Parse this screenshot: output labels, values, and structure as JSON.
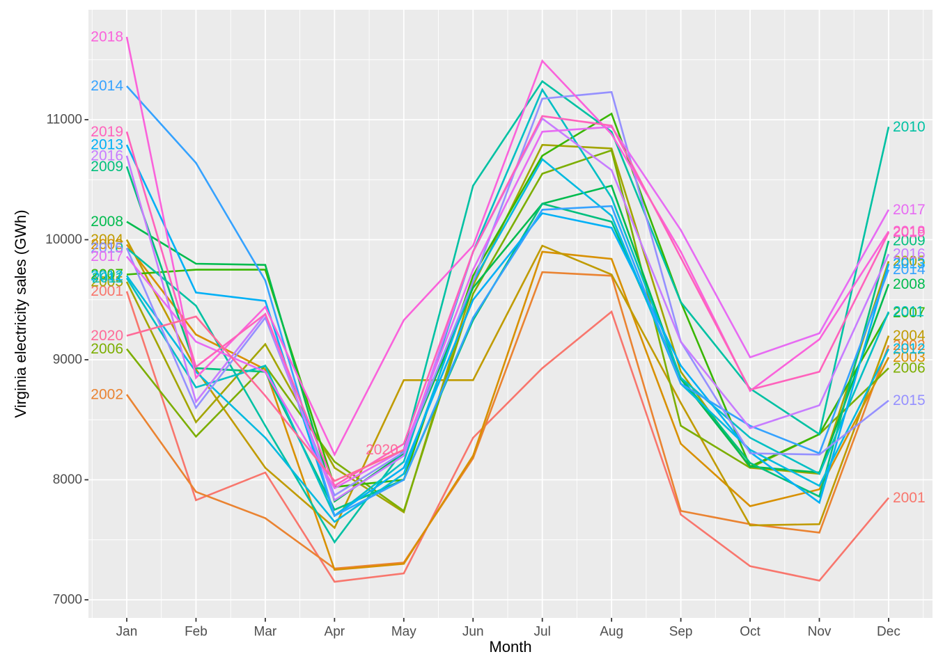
{
  "figure": {
    "background": "#FFFFFF",
    "panel_background": "#EBEBEB",
    "grid_color": "#FFFFFF",
    "axis_tick_color": "#333333",
    "tick_label_color": "#4D4D4D",
    "axis_title_color": "#000000"
  },
  "chart_data": {
    "type": "line",
    "title": "",
    "xlabel": "Month",
    "ylabel": "Virginia electricity sales (GWh)",
    "x_categories": [
      "Jan",
      "Feb",
      "Mar",
      "Apr",
      "May",
      "Jun",
      "Jul",
      "Aug",
      "Sep",
      "Oct",
      "Nov",
      "Dec"
    ],
    "y_ticks": [
      7000,
      8000,
      9000,
      10000,
      11000
    ],
    "y_minor_ticks": [
      7500,
      8500,
      9500,
      10500,
      11500
    ],
    "ylim": [
      6850,
      11920
    ],
    "grid": true,
    "legend_position": "none",
    "direct_labels": "year label at start and end of each line",
    "units": "GWh",
    "series": [
      {
        "name": "2001",
        "color": "#F8766D",
        "values": [
          9570,
          7830,
          8060,
          7150,
          7220,
          8350,
          8930,
          9400,
          7710,
          7280,
          7160,
          7850
        ]
      },
      {
        "name": "2002",
        "color": "#EA8331",
        "values": [
          8710,
          7900,
          7680,
          7260,
          7310,
          8180,
          9730,
          9700,
          7740,
          7630,
          7560,
          9120
        ]
      },
      {
        "name": "2003",
        "color": "#D89000",
        "values": [
          9960,
          9210,
          8920,
          7250,
          7300,
          8200,
          9900,
          9840,
          8300,
          7780,
          7920,
          9020
        ]
      },
      {
        "name": "2004",
        "color": "#C09B00",
        "values": [
          10000,
          8920,
          8100,
          7600,
          8830,
          8830,
          9950,
          9710,
          8640,
          7620,
          7630,
          9200
        ]
      },
      {
        "name": "2005",
        "color": "#A3A500",
        "values": [
          9650,
          8480,
          9130,
          8100,
          7730,
          9620,
          10790,
          10760,
          8900,
          8100,
          8050,
          9820
        ]
      },
      {
        "name": "2006",
        "color": "#7CAE00",
        "values": [
          9090,
          8360,
          8950,
          8150,
          7740,
          9550,
          10550,
          10745,
          8450,
          8100,
          8380,
          8930
        ]
      },
      {
        "name": "2007",
        "color": "#39B600",
        "values": [
          9710,
          9750,
          9750,
          7940,
          8000,
          9700,
          10700,
          11050,
          9480,
          8110,
          8380,
          9390
        ]
      },
      {
        "name": "2008",
        "color": "#00BB4E",
        "values": [
          10150,
          9800,
          9790,
          7820,
          8220,
          9600,
          10300,
          10450,
          8840,
          8110,
          8060,
          9630
        ]
      },
      {
        "name": "2009",
        "color": "#00BF7D",
        "values": [
          10610,
          8930,
          8900,
          7750,
          8000,
          9330,
          10300,
          10150,
          8850,
          8140,
          7860,
          9990
        ]
      },
      {
        "name": "2010",
        "color": "#00C1A3",
        "values": [
          9930,
          9450,
          8450,
          7480,
          8250,
          10450,
          11320,
          10900,
          9480,
          8760,
          8380,
          10940
        ]
      },
      {
        "name": "2011",
        "color": "#00BFC4",
        "values": [
          9680,
          8770,
          8950,
          7700,
          8150,
          9900,
          11250,
          10350,
          8850,
          8350,
          8050,
          9400
        ]
      },
      {
        "name": "2012",
        "color": "#00BAE0",
        "values": [
          9700,
          8900,
          8350,
          7650,
          8050,
          9650,
          10670,
          10200,
          8800,
          8250,
          7950,
          9090
        ]
      },
      {
        "name": "2013",
        "color": "#00B0F6",
        "values": [
          10790,
          9560,
          9490,
          7700,
          8100,
          9500,
          10220,
          10100,
          8950,
          8230,
          7810,
          9800
        ]
      },
      {
        "name": "2014",
        "color": "#35A2FF",
        "values": [
          11280,
          10640,
          9660,
          7700,
          8000,
          9350,
          10250,
          10280,
          8800,
          8450,
          8220,
          9750
        ]
      },
      {
        "name": "2015",
        "color": "#9590FF",
        "values": [
          9930,
          8600,
          9350,
          7870,
          8230,
          9650,
          11175,
          11230,
          9150,
          8220,
          8210,
          8660
        ]
      },
      {
        "name": "2016",
        "color": "#C77CFF",
        "values": [
          10700,
          8650,
          9380,
          7830,
          8200,
          9900,
          11010,
          10580,
          9150,
          8430,
          8620,
          9880
        ]
      },
      {
        "name": "2017",
        "color": "#E76BF3",
        "values": [
          9860,
          9150,
          8900,
          7930,
          8250,
          9750,
          10900,
          10940,
          10080,
          9020,
          9220,
          10250
        ]
      },
      {
        "name": "2018",
        "color": "#FA62DB",
        "values": [
          11690,
          8850,
          9440,
          8210,
          9330,
          9950,
          11490,
          10880,
          9900,
          8740,
          9170,
          10070
        ]
      },
      {
        "name": "2019",
        "color": "#FF62BC",
        "values": [
          10900,
          8940,
          9380,
          7950,
          8300,
          9900,
          11030,
          10950,
          9850,
          8750,
          8900,
          10060
        ]
      },
      {
        "name": "2020",
        "color": "#FF6A98",
        "values": [
          9200,
          9360,
          8700,
          7990,
          8250
        ]
      }
    ]
  }
}
